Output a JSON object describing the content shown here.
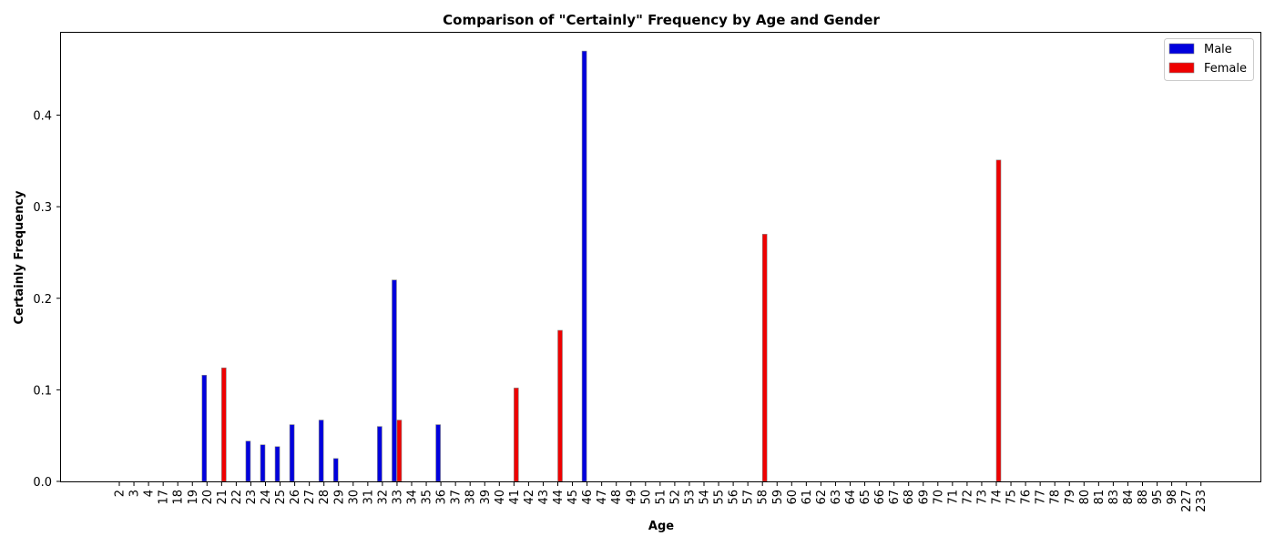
{
  "chart_data": {
    "type": "bar",
    "title": "Comparison of \"Certainly\" Frequency by Age and Gender",
    "xlabel": "Age",
    "ylabel": "Certainly Frequency",
    "ylim": [
      0,
      0.49
    ],
    "yticks": [
      "0.0",
      "0.1",
      "0.2",
      "0.3",
      "0.4"
    ],
    "ytick_values": [
      0,
      0.1,
      0.2,
      0.3,
      0.4
    ],
    "grid": false,
    "legend_position": "top-right",
    "categories": [
      "2",
      "3",
      "4",
      "17",
      "18",
      "19",
      "20",
      "21",
      "22",
      "23",
      "24",
      "25",
      "26",
      "27",
      "28",
      "29",
      "30",
      "31",
      "32",
      "33",
      "34",
      "35",
      "36",
      "37",
      "38",
      "39",
      "40",
      "41",
      "42",
      "43",
      "44",
      "45",
      "46",
      "47",
      "48",
      "49",
      "50",
      "51",
      "52",
      "53",
      "54",
      "55",
      "56",
      "57",
      "58",
      "59",
      "60",
      "61",
      "62",
      "63",
      "64",
      "65",
      "66",
      "67",
      "68",
      "69",
      "70",
      "71",
      "72",
      "73",
      "74",
      "75",
      "76",
      "77",
      "78",
      "79",
      "80",
      "81",
      "83",
      "84",
      "88",
      "95",
      "98",
      "227",
      "233"
    ],
    "series": [
      {
        "name": "Male",
        "color": "#0000dd",
        "values": [
          0,
          0,
          0,
          0,
          0,
          0,
          0.116,
          0,
          0,
          0.044,
          0.04,
          0.038,
          0.062,
          0,
          0.067,
          0.025,
          0,
          0,
          0.06,
          0.22,
          0,
          0,
          0.062,
          0,
          0,
          0,
          0,
          0,
          0,
          0,
          0,
          0,
          0.47,
          0,
          0,
          0,
          0,
          0,
          0,
          0,
          0,
          0,
          0,
          0,
          0,
          0,
          0,
          0,
          0,
          0,
          0,
          0,
          0,
          0,
          0,
          0,
          0,
          0,
          0,
          0,
          0,
          0,
          0,
          0,
          0,
          0,
          0,
          0,
          0,
          0,
          0,
          0,
          0,
          0,
          0
        ]
      },
      {
        "name": "Female",
        "color": "#ee0000",
        "values": [
          0,
          0,
          0,
          0,
          0,
          0,
          0,
          0.124,
          0,
          0,
          0,
          0,
          0,
          0,
          0,
          0,
          0,
          0,
          0,
          0.067,
          0,
          0,
          0,
          0,
          0,
          0,
          0,
          0.102,
          0,
          0,
          0.165,
          0,
          0,
          0,
          0,
          0,
          0,
          0,
          0,
          0,
          0,
          0,
          0,
          0,
          0.27,
          0,
          0,
          0,
          0,
          0,
          0,
          0,
          0,
          0,
          0,
          0,
          0,
          0,
          0,
          0,
          0.351,
          0,
          0,
          0,
          0,
          0,
          0,
          0,
          0,
          0,
          0,
          0,
          0,
          0,
          0
        ]
      }
    ]
  }
}
